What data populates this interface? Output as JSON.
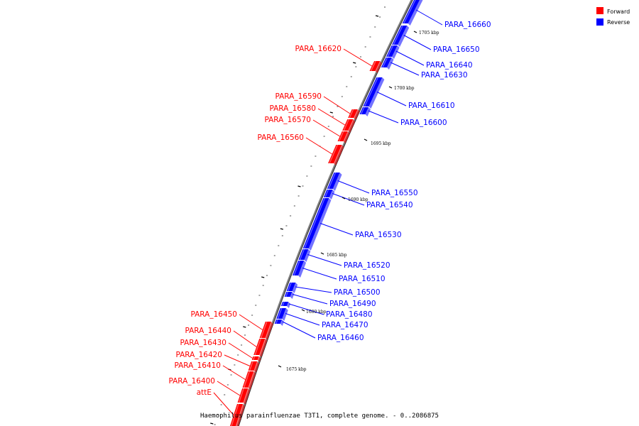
{
  "legend": {
    "forward_label": "Forward",
    "reverse_label": "Reverse",
    "forward_color": "#ff0000",
    "reverse_color": "#0000ff"
  },
  "caption": "Haemophilus parainfluenzae T3T1, complete genome. - 0..2086875",
  "kbp_markers": [
    "1705 kbp",
    "1700 kbp",
    "1695 kbp",
    "1690 kbp",
    "1685 kbp",
    "1680 kbp",
    "1675 kbp"
  ],
  "forward_genes": [
    "PARA_16620",
    "PARA_16590",
    "PARA_16580",
    "PARA_16570",
    "PARA_16560",
    "PARA_16450",
    "PARA_16440",
    "PARA_16430",
    "PARA_16420",
    "PARA_16410",
    "PARA_16400",
    "attE"
  ],
  "reverse_genes": [
    "PARA_16660",
    "PARA_16650",
    "PARA_16640",
    "PARA_16630",
    "PARA_16610",
    "PARA_16600",
    "PARA_16550",
    "PARA_16540",
    "PARA_16530",
    "PARA_16520",
    "PARA_16510",
    "PARA_16500",
    "PARA_16490",
    "PARA_16480",
    "PARA_16470",
    "PARA_16460"
  ]
}
